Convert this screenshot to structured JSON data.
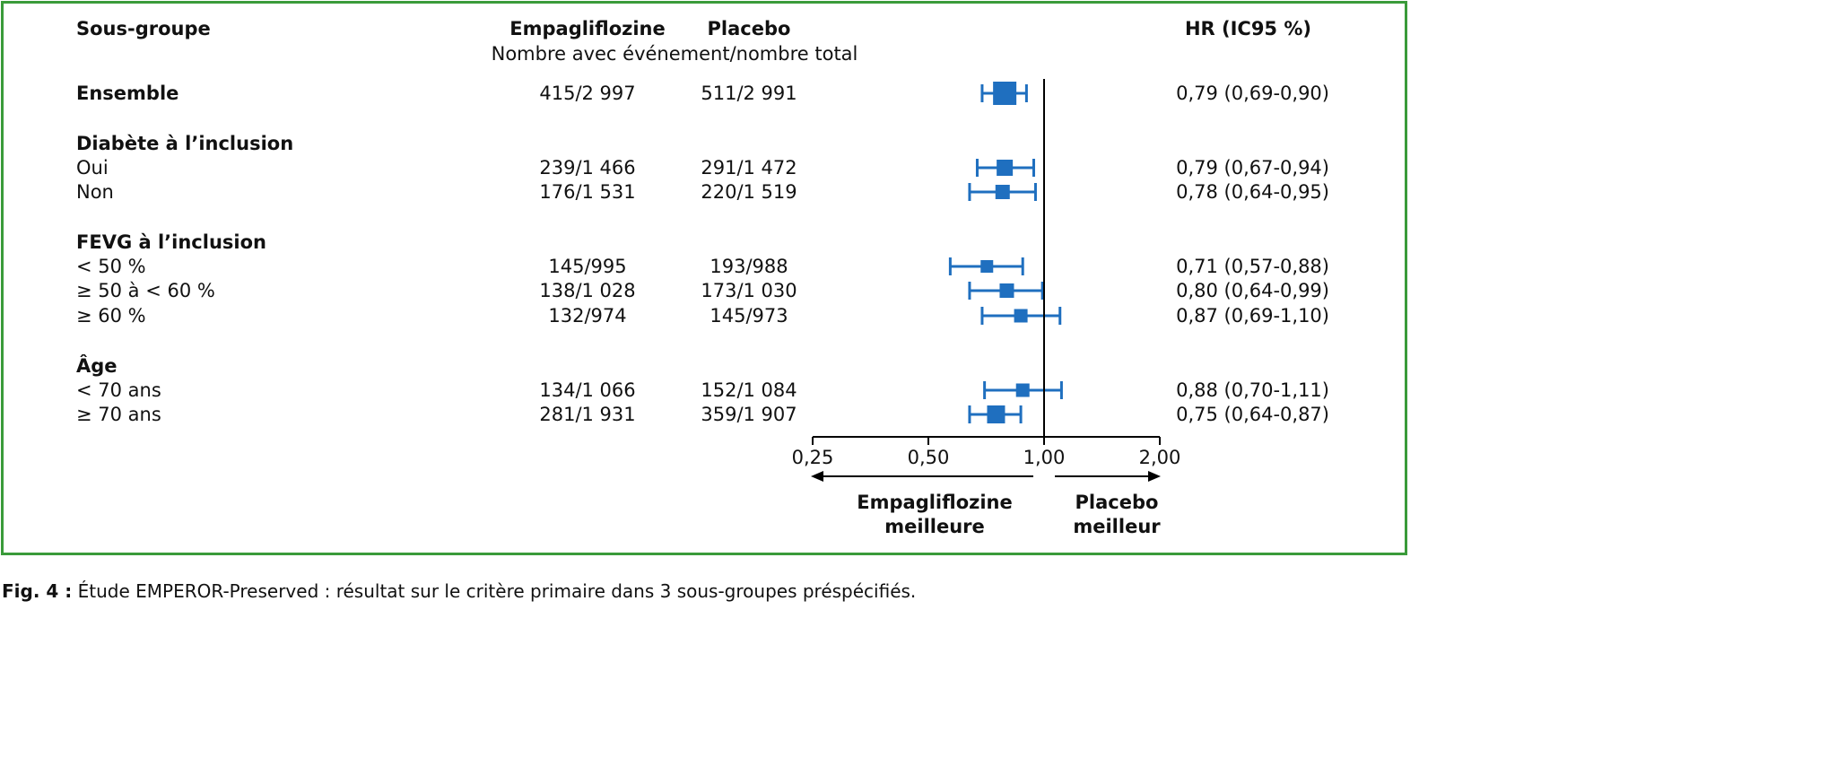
{
  "chart_data": {
    "type": "forest",
    "scale": "log",
    "xlim": [
      0.25,
      2.0
    ],
    "reference_line": 1.0,
    "headers": {
      "subgroup": "Sous-groupe",
      "empa": "Empagliflozine",
      "placebo": "Placebo",
      "subheader": "Nombre avec événement/nombre total",
      "hr": "HR (IC95 %)"
    },
    "ticks": [
      {
        "v": 0.25,
        "label": "0,25"
      },
      {
        "v": 0.5,
        "label": "0,50"
      },
      {
        "v": 1.0,
        "label": "1,00"
      },
      {
        "v": 2.0,
        "label": "2,00"
      }
    ],
    "favors_left": [
      "Empagliflozine",
      "meilleure"
    ],
    "favors_right": [
      "Placebo",
      "meilleur"
    ],
    "marker_color": "#1f6fbf",
    "rows": [
      {
        "label": "Ensemble",
        "bold": true,
        "empa": "415/2 997",
        "placebo": "511/2 991",
        "hr": 0.79,
        "lo": 0.69,
        "hi": 0.9,
        "hr_text": "0,79 (0,69-0,90)"
      },
      {
        "label": "Diabète à l’inclusion",
        "bold": true,
        "gap": true
      },
      {
        "label": "Oui",
        "empa": "239/1 466",
        "placebo": "291/1 472",
        "hr": 0.79,
        "lo": 0.67,
        "hi": 0.94,
        "hr_text": "0,79 (0,67-0,94)"
      },
      {
        "label": "Non",
        "empa": "176/1 531",
        "placebo": "220/1 519",
        "hr": 0.78,
        "lo": 0.64,
        "hi": 0.95,
        "hr_text": "0,78 (0,64-0,95)"
      },
      {
        "label": "FEVG à l’inclusion",
        "bold": true,
        "gap": true
      },
      {
        "label": "< 50 %",
        "empa": "145/995",
        "placebo": "193/988",
        "hr": 0.71,
        "lo": 0.57,
        "hi": 0.88,
        "hr_text": "0,71 (0,57-0,88)"
      },
      {
        "label": "≥ 50 à < 60 %",
        "empa": "138/1 028",
        "placebo": "173/1 030",
        "hr": 0.8,
        "lo": 0.64,
        "hi": 0.99,
        "hr_text": "0,80 (0,64-0,99)"
      },
      {
        "label": "≥ 60 %",
        "empa": "132/974",
        "placebo": "145/973",
        "hr": 0.87,
        "lo": 0.69,
        "hi": 1.1,
        "hr_text": "0,87 (0,69-1,10)"
      },
      {
        "label": "Âge",
        "bold": true,
        "gap": true
      },
      {
        "label": "< 70 ans",
        "empa": "134/1 066",
        "placebo": "152/1 084",
        "hr": 0.88,
        "lo": 0.7,
        "hi": 1.11,
        "hr_text": "0,88 (0,70-1,11)"
      },
      {
        "label": "≥ 70 ans",
        "empa": "281/1 931",
        "placebo": "359/1 907",
        "hr": 0.75,
        "lo": 0.64,
        "hi": 0.87,
        "hr_text": "0,75 (0,64-0,87)"
      }
    ]
  },
  "caption": {
    "label": "Fig. 4 :",
    "text": " Étude EMPEROR-Preserved : résultat sur le critère primaire dans 3 sous-groupes préspécifiés."
  }
}
